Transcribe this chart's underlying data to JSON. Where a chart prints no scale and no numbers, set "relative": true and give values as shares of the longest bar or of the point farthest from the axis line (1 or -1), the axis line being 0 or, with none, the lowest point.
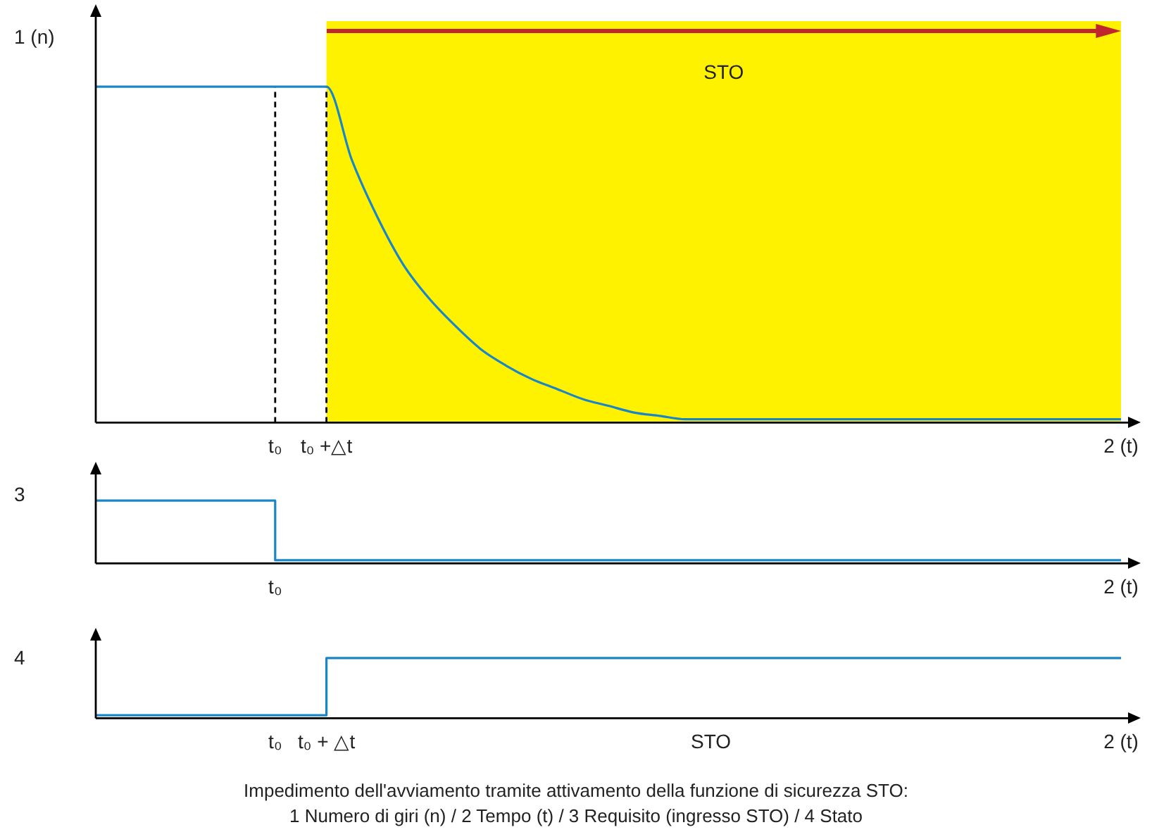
{
  "chart_data": [
    {
      "type": "line",
      "ylabel": "1 (n)",
      "relative": true,
      "legend": false,
      "grid": false,
      "marker": "none",
      "tick_labels": "x",
      "categories": [
        null,
        null,
        null,
        null,
        null,
        null,
        null,
        "t₀",
        null,
        "t₀ +△t",
        null,
        null,
        null,
        null,
        null,
        null,
        null,
        null,
        null,
        null,
        null,
        null,
        null,
        null,
        null,
        null,
        null,
        null,
        null,
        null,
        null,
        null,
        null,
        null,
        null,
        null,
        null,
        null,
        null,
        null,
        "2 (t)"
      ],
      "series": [
        {
          "color": "#1a86c8",
          "values": [
            1,
            1,
            1,
            1,
            1,
            1,
            1,
            1,
            1,
            1,
            0.78,
            0.61,
            0.47,
            0.37,
            0.29,
            0.22,
            0.17,
            0.13,
            0.1,
            0.07,
            0.05,
            0.03,
            0.02,
            0.01,
            0.01,
            0.01,
            0.01,
            0.01,
            0.01,
            0.01,
            0.01,
            0.01,
            0.01,
            0.01,
            0.01,
            0.01,
            0.01,
            0.01,
            0.01,
            0.01,
            0.01
          ]
        }
      ],
      "ref_lines": [
        {
          "axis": "x",
          "value": "t₀",
          "color": "#000000",
          "line_style": "dashed"
        },
        {
          "axis": "x",
          "value": "t₀ +△t",
          "color": "#000000",
          "line_style": "dashed"
        }
      ],
      "bands": [
        {
          "axis": "x",
          "from": "t₀ +△t",
          "to": "2 (t)",
          "label": "STO",
          "color": "#fff200"
        }
      ]
    },
    {
      "type": "step",
      "ylabel": "3",
      "relative": true,
      "legend": false,
      "grid": false,
      "marker": "none",
      "tick_labels": "x",
      "categories": [
        null,
        null,
        null,
        null,
        null,
        null,
        null,
        "t₀",
        null,
        null,
        null,
        null,
        null,
        null,
        null,
        null,
        null,
        null,
        null,
        null,
        null,
        null,
        null,
        null,
        null,
        null,
        null,
        null,
        null,
        null,
        null,
        null,
        null,
        null,
        null,
        null,
        null,
        null,
        null,
        null,
        "2 (t)"
      ],
      "series": [
        {
          "color": "#1a86c8",
          "values": [
            1,
            1,
            1,
            1,
            1,
            1,
            1,
            0.05,
            0.05,
            0.05,
            0.05,
            0.05,
            0.05,
            0.05,
            0.05,
            0.05,
            0.05,
            0.05,
            0.05,
            0.05,
            0.05,
            0.05,
            0.05,
            0.05,
            0.05,
            0.05,
            0.05,
            0.05,
            0.05,
            0.05,
            0.05,
            0.05,
            0.05,
            0.05,
            0.05,
            0.05,
            0.05,
            0.05,
            0.05,
            0.05,
            0.05
          ]
        }
      ]
    },
    {
      "type": "step",
      "ylabel": "4",
      "relative": true,
      "legend": false,
      "grid": false,
      "marker": "none",
      "tick_labels": "x",
      "categories": [
        null,
        null,
        null,
        null,
        null,
        null,
        null,
        "t₀",
        null,
        "t₀ + △t",
        null,
        null,
        null,
        null,
        null,
        null,
        null,
        null,
        null,
        null,
        null,
        null,
        null,
        null,
        "STO",
        null,
        null,
        null,
        null,
        null,
        null,
        null,
        null,
        null,
        null,
        null,
        null,
        null,
        null,
        null,
        "2 (t)"
      ],
      "series": [
        {
          "color": "#1a86c8",
          "values": [
            0.05,
            0.05,
            0.05,
            0.05,
            0.05,
            0.05,
            0.05,
            0.05,
            0.05,
            1,
            1,
            1,
            1,
            1,
            1,
            1,
            1,
            1,
            1,
            1,
            1,
            1,
            1,
            1,
            1,
            1,
            1,
            1,
            1,
            1,
            1,
            1,
            1,
            1,
            1,
            1,
            1,
            1,
            1,
            1,
            1
          ]
        }
      ],
      "annotations": [
        "Impedimento dell'avviamento tramite attivamento della funzione di sicurezza STO:",
        "1 Numero di giri (n) / 2 Tempo (t) / 3 Requisito (ingresso STO) / 4 Stato"
      ]
    }
  ]
}
